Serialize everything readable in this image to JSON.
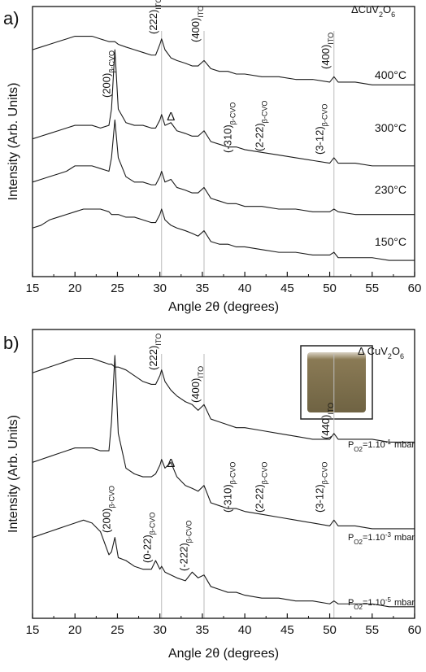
{
  "chart_data": [
    {
      "type": "line",
      "panel_label": "a)",
      "xlabel": "Angle 2θ (degrees)",
      "ylabel": "Intensity (Arb. Units)",
      "xlim": [
        15,
        60
      ],
      "ylim": [
        0,
        100
      ],
      "xticks": [
        15,
        20,
        25,
        30,
        35,
        40,
        45,
        50,
        55,
        60
      ],
      "legend_parts": [
        "ΔCuV",
        "2",
        "O",
        "6"
      ],
      "ref_lines": [
        30.2,
        35.2,
        50.5
      ],
      "x": [
        15,
        16,
        17,
        18,
        19,
        20,
        21,
        22,
        23,
        24,
        24.3,
        24.7,
        25.1,
        26,
        27,
        28,
        29,
        29.5,
        30,
        30.2,
        30.6,
        31.3,
        32,
        33,
        33.8,
        34.5,
        35.2,
        36,
        37,
        38,
        39,
        40,
        42,
        44,
        46,
        48,
        50,
        50.5,
        51,
        53,
        55,
        57,
        60
      ],
      "series": [
        {
          "label_parts": [
            "400°C"
          ],
          "color": "#1a1a1a",
          "values": [
            84,
            85,
            86,
            87,
            88,
            89,
            89,
            89,
            88,
            87,
            87,
            87,
            86,
            85,
            84,
            83,
            82,
            82,
            86,
            88,
            84,
            81,
            80,
            79,
            78,
            78,
            80,
            77,
            76,
            76,
            75,
            75,
            74,
            74,
            73,
            73,
            72,
            74,
            72,
            72,
            71,
            71,
            71
          ]
        },
        {
          "label_parts": [
            "300°C"
          ],
          "color": "#1a1a1a",
          "values": [
            51,
            52,
            53,
            54,
            55,
            56,
            56,
            56,
            55,
            56,
            62,
            84,
            62,
            57,
            56,
            56,
            55,
            55,
            58,
            60,
            56,
            57,
            54,
            53,
            52,
            52,
            54,
            50,
            49,
            48,
            48,
            47,
            46,
            45,
            44,
            43,
            42,
            44,
            42,
            42,
            41,
            41,
            41
          ]
        },
        {
          "label_parts": [
            "230°C"
          ],
          "color": "#1a1a1a",
          "values": [
            35,
            36,
            37,
            38,
            39,
            41,
            41,
            41,
            40,
            39,
            44,
            58,
            44,
            37,
            35,
            35,
            34,
            34,
            37,
            39,
            35,
            36,
            33,
            32,
            31,
            31,
            33,
            29,
            28,
            27,
            27,
            26,
            26,
            25,
            25,
            24,
            24,
            25,
            24,
            23,
            23,
            23,
            23
          ]
        },
        {
          "label_parts": [
            "150°C"
          ],
          "color": "#1a1a1a",
          "values": [
            18,
            19,
            21,
            22,
            23,
            24,
            25,
            25,
            25,
            24,
            23,
            23,
            23,
            22,
            22,
            21,
            20,
            20,
            23,
            25,
            21,
            19,
            18,
            17,
            16,
            15,
            17,
            13,
            12,
            12,
            11,
            11,
            10,
            9,
            9,
            8,
            8,
            9,
            7,
            7,
            7,
            6,
            6
          ]
        }
      ],
      "annotations": [
        {
          "text": "(222)",
          "sub": "ITO",
          "x": 30.2
        },
        {
          "text": "(400)",
          "sub": "ITO",
          "x": 35.2
        },
        {
          "text": "(400)",
          "sub": "ITO",
          "x": 50.5
        },
        {
          "text": "(200)",
          "sub": "β-CVO",
          "x": 24.7
        },
        {
          "text": "(-310)",
          "sub": "β-CVO",
          "x": 39
        },
        {
          "text": "(2-22)",
          "sub": "β-CVO",
          "x": 42.7
        },
        {
          "text": "(3-12)",
          "sub": "β-CVO",
          "x": 49.8
        },
        {
          "text": "Δ",
          "x": 31.3
        }
      ]
    },
    {
      "type": "line",
      "panel_label": "b)",
      "xlabel": "Angle 2θ (degrees)",
      "ylabel": "Intensity (Arb. Units)",
      "xlim": [
        15,
        60
      ],
      "ylim": [
        0,
        100
      ],
      "xticks": [
        15,
        20,
        25,
        30,
        35,
        40,
        45,
        50,
        55,
        60
      ],
      "legend_parts": [
        "Δ CuV",
        "2",
        "O",
        "6"
      ],
      "ref_lines": [
        30.2,
        35.2,
        50.5
      ],
      "x": [
        15,
        16,
        17,
        18,
        19,
        20,
        21,
        22,
        23,
        24,
        24.3,
        24.7,
        25.1,
        26,
        27,
        28,
        29,
        29.5,
        30,
        30.2,
        30.6,
        31.3,
        32,
        33,
        33.8,
        34.5,
        35.2,
        36,
        37,
        38,
        39,
        40,
        42,
        44,
        46,
        48,
        50,
        50.5,
        51,
        53,
        55,
        57,
        60
      ],
      "series": [
        {
          "label_parts": [
            "P",
            "O2",
            "=1.10",
            "-1",
            "mbar"
          ],
          "color": "#1a1a1a",
          "values": [
            85,
            86,
            87,
            88,
            89,
            90,
            90,
            90,
            89,
            88,
            88,
            87,
            87,
            86,
            84,
            82,
            81,
            81,
            84,
            86,
            82,
            79,
            77,
            75,
            74,
            72,
            74,
            69,
            68,
            67,
            66,
            66,
            65,
            64,
            63,
            62,
            62,
            64,
            62,
            62,
            62,
            61,
            61
          ]
        },
        {
          "label_parts": [
            "P",
            "O2",
            "=1.10",
            "-3",
            "mbar"
          ],
          "color": "#1a1a1a",
          "values": [
            54,
            55,
            56,
            57,
            58,
            59,
            59,
            59,
            58,
            58,
            68,
            91,
            64,
            52,
            50,
            49,
            49,
            50,
            53,
            55,
            52,
            54,
            49,
            46,
            45,
            44,
            46,
            40,
            39,
            38,
            38,
            37,
            36,
            35,
            34,
            33,
            32,
            34,
            32,
            32,
            31,
            31,
            31
          ]
        },
        {
          "label_parts": [
            "P",
            "O2",
            "=1.10",
            "-5",
            "mbar"
          ],
          "color": "#1a1a1a",
          "values": [
            28,
            29,
            30,
            31,
            32,
            33,
            34,
            33,
            30,
            22,
            23,
            28,
            21,
            20,
            18,
            17,
            17,
            20,
            17,
            18,
            16,
            15,
            14,
            13,
            16,
            14,
            15,
            11,
            10,
            9,
            9,
            8,
            7,
            7,
            6,
            6,
            5,
            6,
            5,
            5,
            5,
            4,
            4
          ]
        }
      ],
      "annotations": [
        {
          "text": "(222)",
          "sub": "ITO",
          "x": 30.2
        },
        {
          "text": "(400)",
          "sub": "ITO",
          "x": 35.2
        },
        {
          "text": "(440)",
          "sub": "ITO",
          "x": 50.5
        },
        {
          "text": "(200)",
          "sub": "β-CVO",
          "x": 24.7
        },
        {
          "text": "(0-22)",
          "sub": "β-CVO",
          "x": 29.5
        },
        {
          "text": "(-222)",
          "sub": "β-CVO",
          "x": 33.8
        },
        {
          "text": "(-310)",
          "sub": "β-CVO",
          "x": 39
        },
        {
          "text": "(2-22)",
          "sub": "β-CVO",
          "x": 42.7
        },
        {
          "text": "(3-12)",
          "sub": "β-CVO",
          "x": 49.8
        },
        {
          "text": "Δ",
          "x": 31.3
        }
      ]
    }
  ]
}
